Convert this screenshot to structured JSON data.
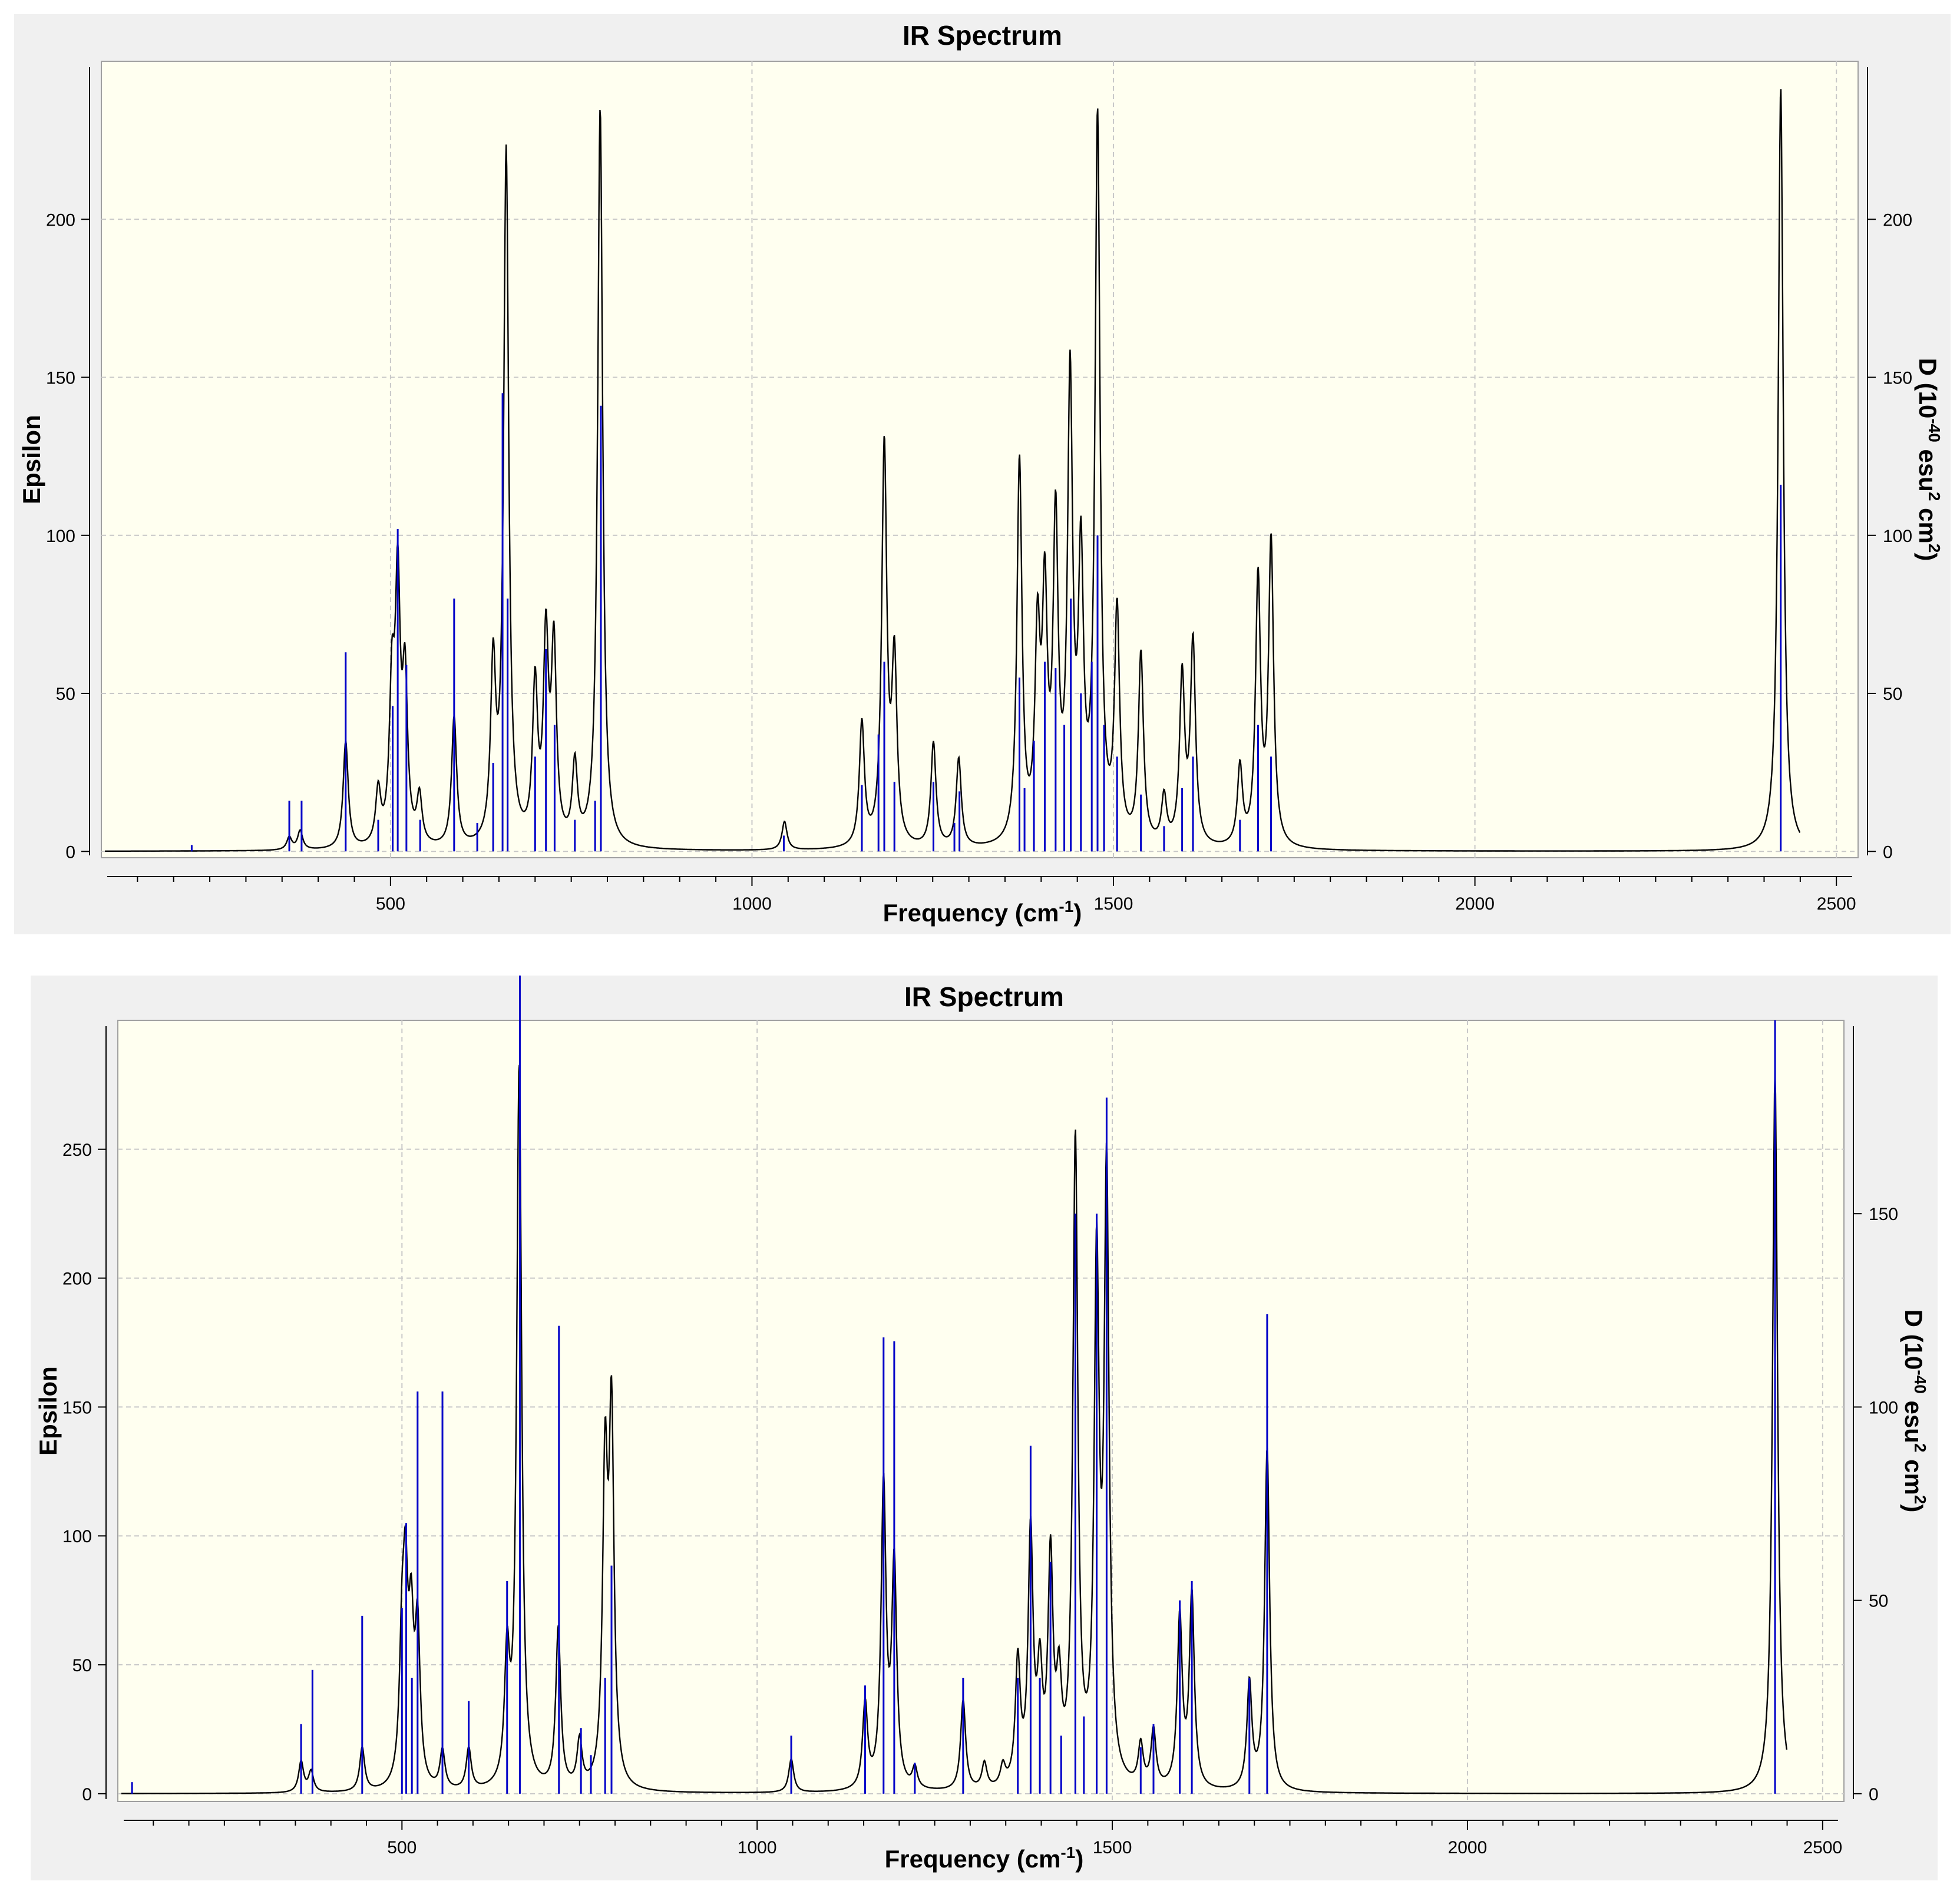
{
  "chart_data": [
    {
      "type": "line",
      "title": "IR Spectrum",
      "xlabel": "Frequency (cm-1)",
      "xlabel_base": "Frequency (cm",
      "xlabel_sup": "-1",
      "xlabel_end": ")",
      "ylabel": "Epsilon",
      "y2label": "D (10-40 esu2 cm2)",
      "y2label_parts": [
        "D (10",
        "-40",
        " esu",
        "2",
        " cm",
        "2",
        ")"
      ],
      "xlim": [
        100,
        2530
      ],
      "ylim": [
        -2,
        250
      ],
      "y2lim": [
        -2,
        250
      ],
      "xticks": [
        500,
        1000,
        1500,
        2000,
        2500
      ],
      "yticks": [
        0,
        50,
        100,
        150,
        200
      ],
      "y2ticks": [
        0,
        50,
        100,
        150,
        200
      ],
      "grid": true,
      "series": [
        {
          "kind": "curve",
          "color": "#000000",
          "peaks": [
            {
              "x": 360,
              "y": 4
            },
            {
              "x": 375,
              "y": 6
            },
            {
              "x": 438,
              "y": 34
            },
            {
              "x": 483,
              "y": 17
            },
            {
              "x": 502,
              "y": 46
            },
            {
              "x": 510,
              "y": 79
            },
            {
              "x": 520,
              "y": 50
            },
            {
              "x": 540,
              "y": 15
            },
            {
              "x": 588,
              "y": 41
            },
            {
              "x": 642,
              "y": 55
            },
            {
              "x": 660,
              "y": 219
            },
            {
              "x": 700,
              "y": 49
            },
            {
              "x": 715,
              "y": 63
            },
            {
              "x": 726,
              "y": 61
            },
            {
              "x": 755,
              "y": 25
            },
            {
              "x": 790,
              "y": 234
            },
            {
              "x": 1045,
              "y": 9
            },
            {
              "x": 1152,
              "y": 39
            },
            {
              "x": 1183,
              "y": 126
            },
            {
              "x": 1197,
              "y": 57
            },
            {
              "x": 1251,
              "y": 33
            },
            {
              "x": 1286,
              "y": 28
            },
            {
              "x": 1370,
              "y": 121
            },
            {
              "x": 1395,
              "y": 62
            },
            {
              "x": 1405,
              "y": 73
            },
            {
              "x": 1420,
              "y": 98
            },
            {
              "x": 1440,
              "y": 143
            },
            {
              "x": 1455,
              "y": 85
            },
            {
              "x": 1478,
              "y": 228
            },
            {
              "x": 1505,
              "y": 72
            },
            {
              "x": 1538,
              "y": 60
            },
            {
              "x": 1570,
              "y": 15
            },
            {
              "x": 1595,
              "y": 53
            },
            {
              "x": 1610,
              "y": 64
            },
            {
              "x": 1675,
              "y": 25
            },
            {
              "x": 1700,
              "y": 84
            },
            {
              "x": 1718,
              "y": 96
            },
            {
              "x": 2423,
              "y": 242
            }
          ]
        },
        {
          "kind": "sticks",
          "color": "#0000c8",
          "values": [
            {
              "x": 225,
              "y": 2
            },
            {
              "x": 360,
              "y": 16
            },
            {
              "x": 377,
              "y": 16
            },
            {
              "x": 438,
              "y": 63
            },
            {
              "x": 483,
              "y": 10
            },
            {
              "x": 503,
              "y": 46
            },
            {
              "x": 510,
              "y": 102
            },
            {
              "x": 522,
              "y": 59
            },
            {
              "x": 541,
              "y": 10
            },
            {
              "x": 588,
              "y": 80
            },
            {
              "x": 620,
              "y": 9
            },
            {
              "x": 642,
              "y": 28
            },
            {
              "x": 655,
              "y": 145
            },
            {
              "x": 662,
              "y": 80
            },
            {
              "x": 700,
              "y": 30
            },
            {
              "x": 715,
              "y": 64
            },
            {
              "x": 727,
              "y": 40
            },
            {
              "x": 755,
              "y": 10
            },
            {
              "x": 783,
              "y": 16
            },
            {
              "x": 791,
              "y": 141
            },
            {
              "x": 1044,
              "y": 5
            },
            {
              "x": 1152,
              "y": 21
            },
            {
              "x": 1175,
              "y": 37
            },
            {
              "x": 1183,
              "y": 60
            },
            {
              "x": 1197,
              "y": 22
            },
            {
              "x": 1251,
              "y": 22
            },
            {
              "x": 1280,
              "y": 9
            },
            {
              "x": 1287,
              "y": 19
            },
            {
              "x": 1370,
              "y": 55
            },
            {
              "x": 1377,
              "y": 20
            },
            {
              "x": 1390,
              "y": 35
            },
            {
              "x": 1405,
              "y": 60
            },
            {
              "x": 1420,
              "y": 58
            },
            {
              "x": 1432,
              "y": 40
            },
            {
              "x": 1441,
              "y": 80
            },
            {
              "x": 1455,
              "y": 50
            },
            {
              "x": 1470,
              "y": 60
            },
            {
              "x": 1478,
              "y": 100
            },
            {
              "x": 1487,
              "y": 40
            },
            {
              "x": 1505,
              "y": 30
            },
            {
              "x": 1538,
              "y": 18
            },
            {
              "x": 1570,
              "y": 8
            },
            {
              "x": 1595,
              "y": 20
            },
            {
              "x": 1610,
              "y": 30
            },
            {
              "x": 1675,
              "y": 10
            },
            {
              "x": 1700,
              "y": 40
            },
            {
              "x": 1718,
              "y": 30
            },
            {
              "x": 2423,
              "y": 116
            }
          ]
        }
      ]
    },
    {
      "type": "line",
      "title": "IR Spectrum",
      "xlabel": "Frequency (cm-1)",
      "xlabel_base": "Frequency (cm",
      "xlabel_sup": "-1",
      "xlabel_end": ")",
      "ylabel": "Epsilon",
      "y2label": "D (10-40 esu2 cm2)",
      "y2label_parts": [
        "D (10",
        "-40",
        " esu",
        "2",
        " cm",
        "2",
        ")"
      ],
      "xlim": [
        100,
        2530
      ],
      "ylim": [
        -3,
        300
      ],
      "y2lim": [
        -2,
        200
      ],
      "xticks": [
        500,
        1000,
        1500,
        2000,
        2500
      ],
      "yticks": [
        0,
        50,
        100,
        150,
        200,
        250
      ],
      "y2ticks": [
        0,
        50,
        100,
        150
      ],
      "grid": true,
      "series": [
        {
          "kind": "curve",
          "color": "#000000",
          "peaks": [
            {
              "x": 358,
              "y": 12
            },
            {
              "x": 372,
              "y": 8
            },
            {
              "x": 444,
              "y": 17
            },
            {
              "x": 500,
              "y": 48
            },
            {
              "x": 505,
              "y": 68
            },
            {
              "x": 513,
              "y": 55
            },
            {
              "x": 522,
              "y": 59
            },
            {
              "x": 557,
              "y": 15
            },
            {
              "x": 594,
              "y": 16
            },
            {
              "x": 648,
              "y": 48
            },
            {
              "x": 665,
              "y": 280
            },
            {
              "x": 720,
              "y": 62
            },
            {
              "x": 750,
              "y": 18
            },
            {
              "x": 786,
              "y": 120
            },
            {
              "x": 795,
              "y": 140
            },
            {
              "x": 1048,
              "y": 13
            },
            {
              "x": 1152,
              "y": 33
            },
            {
              "x": 1178,
              "y": 117
            },
            {
              "x": 1193,
              "y": 86
            },
            {
              "x": 1222,
              "y": 8
            },
            {
              "x": 1290,
              "y": 35
            },
            {
              "x": 1320,
              "y": 10
            },
            {
              "x": 1346,
              "y": 8
            },
            {
              "x": 1367,
              "y": 48
            },
            {
              "x": 1385,
              "y": 97
            },
            {
              "x": 1398,
              "y": 40
            },
            {
              "x": 1413,
              "y": 86
            },
            {
              "x": 1425,
              "y": 35
            },
            {
              "x": 1448,
              "y": 249
            },
            {
              "x": 1478,
              "y": 197
            },
            {
              "x": 1492,
              "y": 233
            },
            {
              "x": 1540,
              "y": 16
            },
            {
              "x": 1558,
              "y": 22
            },
            {
              "x": 1595,
              "y": 66
            },
            {
              "x": 1612,
              "y": 75
            },
            {
              "x": 1693,
              "y": 41
            },
            {
              "x": 1718,
              "y": 133
            },
            {
              "x": 2433,
              "y": 280
            }
          ]
        },
        {
          "kind": "sticks",
          "color": "#0000c8",
          "values": [
            {
              "x": 120,
              "y": 3
            },
            {
              "x": 358,
              "y": 18
            },
            {
              "x": 374,
              "y": 32
            },
            {
              "x": 444,
              "y": 46
            },
            {
              "x": 500,
              "y": 48
            },
            {
              "x": 506,
              "y": 70
            },
            {
              "x": 514,
              "y": 30
            },
            {
              "x": 522,
              "y": 104
            },
            {
              "x": 557,
              "y": 104
            },
            {
              "x": 594,
              "y": 24
            },
            {
              "x": 648,
              "y": 55
            },
            {
              "x": 666,
              "y": 259
            },
            {
              "x": 721,
              "y": 121
            },
            {
              "x": 752,
              "y": 17
            },
            {
              "x": 766,
              "y": 10
            },
            {
              "x": 786,
              "y": 30
            },
            {
              "x": 795,
              "y": 59
            },
            {
              "x": 1048,
              "y": 15
            },
            {
              "x": 1152,
              "y": 28
            },
            {
              "x": 1178,
              "y": 118
            },
            {
              "x": 1193,
              "y": 117
            },
            {
              "x": 1222,
              "y": 8
            },
            {
              "x": 1290,
              "y": 30
            },
            {
              "x": 1367,
              "y": 30
            },
            {
              "x": 1385,
              "y": 90
            },
            {
              "x": 1398,
              "y": 30
            },
            {
              "x": 1413,
              "y": 60
            },
            {
              "x": 1428,
              "y": 15
            },
            {
              "x": 1448,
              "y": 150
            },
            {
              "x": 1460,
              "y": 20
            },
            {
              "x": 1478,
              "y": 150
            },
            {
              "x": 1492,
              "y": 180
            },
            {
              "x": 1540,
              "y": 12
            },
            {
              "x": 1558,
              "y": 18
            },
            {
              "x": 1595,
              "y": 50
            },
            {
              "x": 1612,
              "y": 55
            },
            {
              "x": 1693,
              "y": 30
            },
            {
              "x": 1718,
              "y": 124
            },
            {
              "x": 2433,
              "y": 200
            }
          ]
        }
      ]
    }
  ]
}
